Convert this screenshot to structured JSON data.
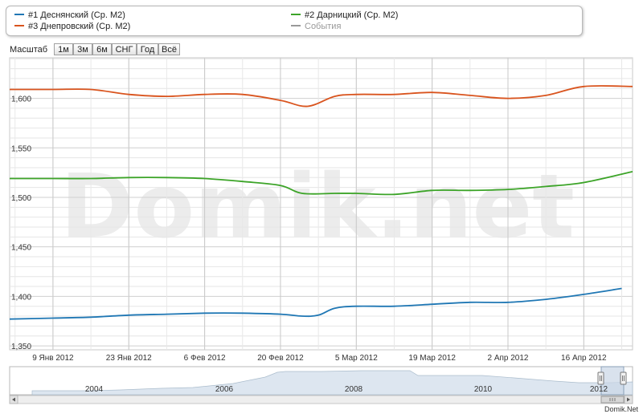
{
  "legend": {
    "items": [
      {
        "label": "#1 Деснянский (Ср. М2)",
        "color": "#1f77b4",
        "enabled": true
      },
      {
        "label": "#2 Дарницкий (Ср. М2)",
        "color": "#3ca428",
        "enabled": true
      },
      {
        "label": "#3 Днепровский (Ср. М2)",
        "color": "#d9541e",
        "enabled": true
      },
      {
        "label": "События",
        "color": "#999999",
        "enabled": false
      }
    ]
  },
  "toolbar": {
    "scale_label": "Масштаб",
    "zoom_buttons": [
      "1м",
      "3м",
      "6м",
      "СНГ",
      "Год",
      "Всё"
    ]
  },
  "watermark": "Domik.net",
  "credit": "Domik.Net",
  "chart_data": {
    "type": "line",
    "x_tick_labels": [
      "9 Янв 2012",
      "23 Янв 2012",
      "6 Фев 2012",
      "20 Фев 2012",
      "5 Мар 2012",
      "19 Мар 2012",
      "2 Апр 2012",
      "16 Апр 2012"
    ],
    "x_tick_dates": [
      "2012-01-09",
      "2012-01-23",
      "2012-02-06",
      "2012-02-20",
      "2012-03-05",
      "2012-03-19",
      "2012-04-02",
      "2012-04-16"
    ],
    "xlim": [
      "2012-01-01",
      "2012-04-25"
    ],
    "y_ticks": [
      1350,
      1400,
      1450,
      1500,
      1550,
      1600
    ],
    "y_tick_labels": [
      "1,350",
      "1,400",
      "1,450",
      "1,500",
      "1,550",
      "1,600"
    ],
    "ylim": [
      1346,
      1641
    ],
    "grid": true,
    "series": [
      {
        "name": "#1 Деснянский (Ср. М2)",
        "color": "#1f77b4",
        "x": [
          "2012-01-01",
          "2012-01-09",
          "2012-01-16",
          "2012-01-23",
          "2012-01-30",
          "2012-02-06",
          "2012-02-13",
          "2012-02-20",
          "2012-02-24",
          "2012-02-27",
          "2012-03-01",
          "2012-03-05",
          "2012-03-12",
          "2012-03-19",
          "2012-03-26",
          "2012-04-02",
          "2012-04-09",
          "2012-04-16",
          "2012-04-23"
        ],
        "values": [
          1377,
          1378,
          1379,
          1381,
          1382,
          1383,
          1383,
          1382,
          1380,
          1381,
          1388,
          1390,
          1390,
          1392,
          1394,
          1394,
          1397,
          1402,
          1408
        ]
      },
      {
        "name": "#2 Дарницкий (Ср. М2)",
        "color": "#3ca428",
        "x": [
          "2012-01-01",
          "2012-01-09",
          "2012-01-16",
          "2012-01-23",
          "2012-01-30",
          "2012-02-06",
          "2012-02-13",
          "2012-02-20",
          "2012-02-24",
          "2012-03-01",
          "2012-03-05",
          "2012-03-12",
          "2012-03-19",
          "2012-03-26",
          "2012-04-02",
          "2012-04-09",
          "2012-04-16",
          "2012-04-25"
        ],
        "values": [
          1519,
          1519,
          1519,
          1520,
          1520,
          1519,
          1516,
          1512,
          1504,
          1504,
          1504,
          1503,
          1507,
          1507,
          1508,
          1511,
          1515,
          1526
        ]
      },
      {
        "name": "#3 Днепровский (Ср. М2)",
        "color": "#d9541e",
        "x": [
          "2012-01-01",
          "2012-01-09",
          "2012-01-16",
          "2012-01-23",
          "2012-01-30",
          "2012-02-06",
          "2012-02-13",
          "2012-02-20",
          "2012-02-25",
          "2012-03-01",
          "2012-03-05",
          "2012-03-12",
          "2012-03-19",
          "2012-03-26",
          "2012-04-02",
          "2012-04-09",
          "2012-04-16",
          "2012-04-25"
        ],
        "values": [
          1609,
          1609,
          1609,
          1604,
          1602,
          1604,
          1604,
          1598,
          1592,
          1602,
          1604,
          1604,
          1606,
          1603,
          1600,
          1603,
          1612,
          1612
        ]
      }
    ]
  },
  "navigator": {
    "year_labels": [
      "2004",
      "2006",
      "2008",
      "2010",
      "2012"
    ]
  }
}
